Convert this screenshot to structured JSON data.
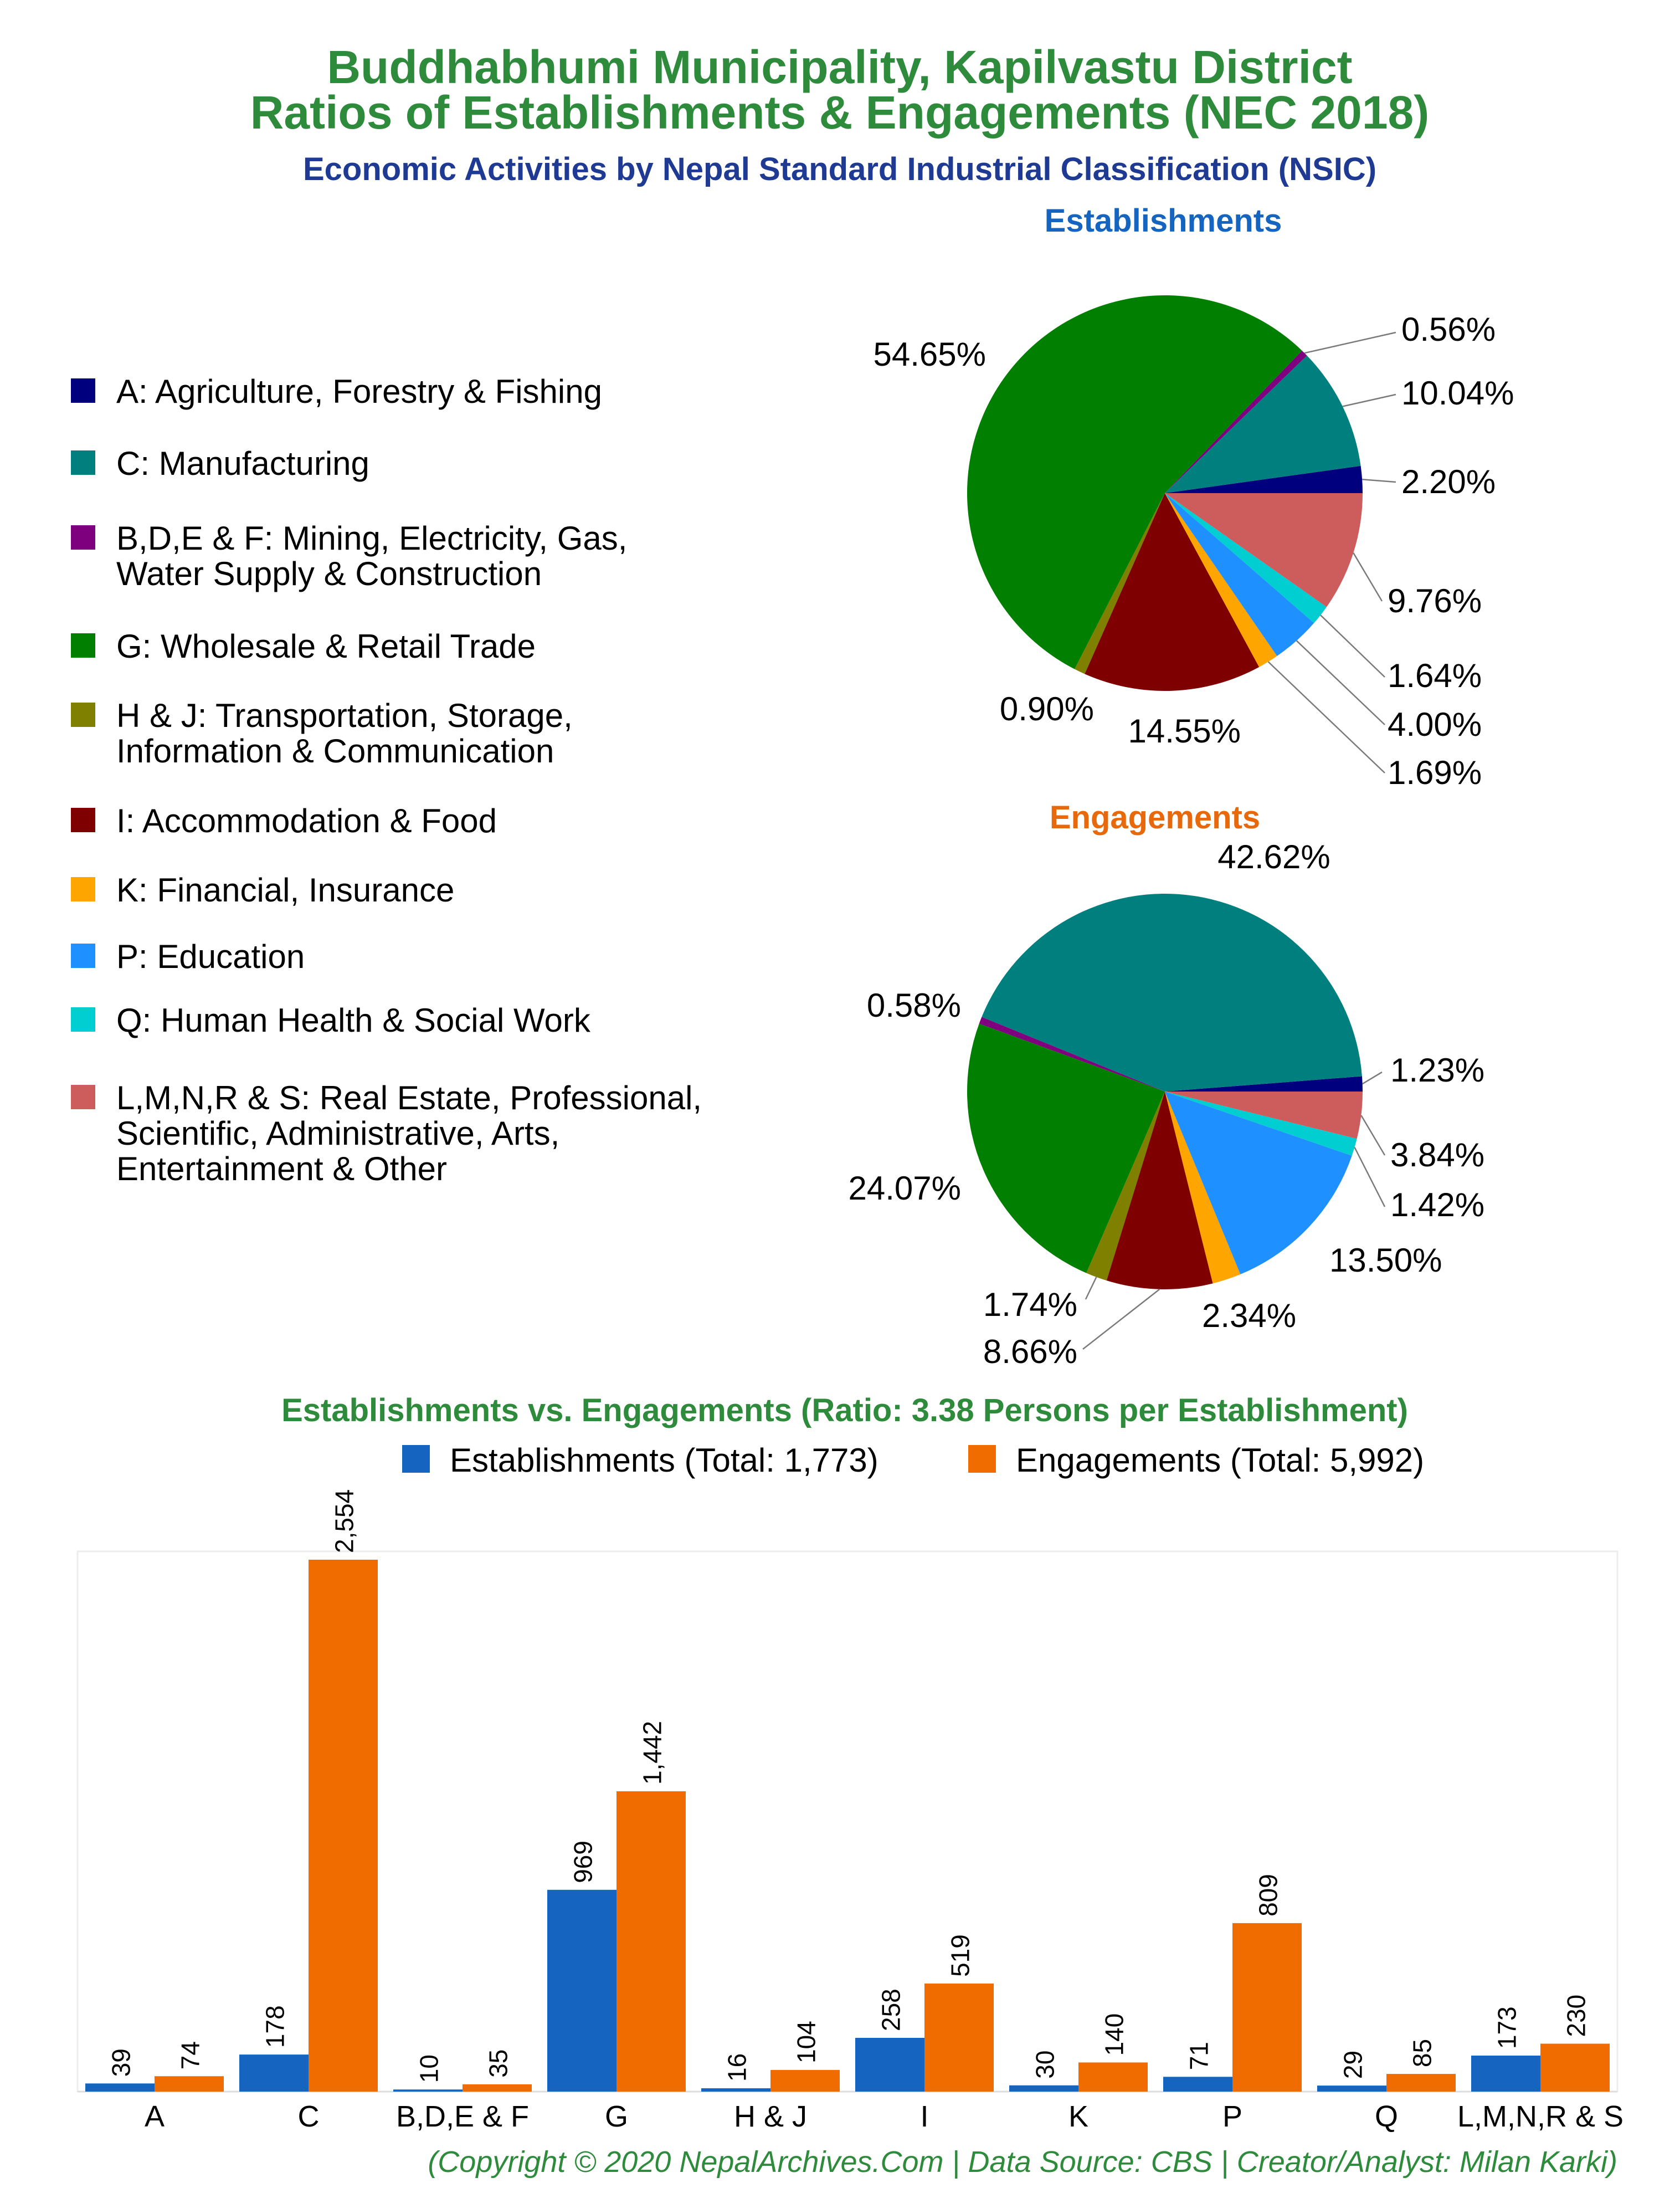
{
  "header": {
    "title_line1": "Buddhabhumi Municipality, Kapilvastu District",
    "title_line2": "Ratios of Establishments & Engagements (NEC 2018)",
    "subtitle": "Economic Activities by Nepal Standard Industrial Classification (NSIC)"
  },
  "colors": {
    "title": "#2e8b3c",
    "subtitle": "#1f3a93",
    "establishments_heading": "#1565c0",
    "engagements_heading": "#e8690b",
    "bar_establishments": "#1565c0",
    "bar_engagements": "#f06c00"
  },
  "legend": {
    "items": [
      {
        "lines": [
          "A: Agriculture, Forestry & Fishing"
        ],
        "color": "#00007f"
      },
      {
        "lines": [
          "C: Manufacturing"
        ],
        "color": "#007f7f"
      },
      {
        "lines": [
          "B,D,E & F: Mining, Electricity, Gas,",
          "Water Supply & Construction"
        ],
        "color": "#7f007f"
      },
      {
        "lines": [
          "G: Wholesale & Retail Trade"
        ],
        "color": "#007f00"
      },
      {
        "lines": [
          "H & J: Transportation, Storage,",
          "Information & Communication"
        ],
        "color": "#7f7f00"
      },
      {
        "lines": [
          "I: Accommodation & Food"
        ],
        "color": "#7f0000"
      },
      {
        "lines": [
          "K: Financial, Insurance"
        ],
        "color": "#ffa500"
      },
      {
        "lines": [
          "P: Education"
        ],
        "color": "#1e90ff"
      },
      {
        "lines": [
          "Q: Human Health & Social Work"
        ],
        "color": "#00ced1"
      },
      {
        "lines": [
          "L,M,N,R & S: Real Estate, Professional,",
          "Scientific, Administrative, Arts,",
          "Entertainment & Other"
        ],
        "color": "#cd5c5c"
      }
    ]
  },
  "chart_data": [
    {
      "type": "pie",
      "title": "Establishments",
      "slices": [
        {
          "category": "A",
          "value": 2.2,
          "label": "2.20%",
          "color": "#00007f"
        },
        {
          "category": "C",
          "value": 10.04,
          "label": "10.04%",
          "color": "#007f7f"
        },
        {
          "category": "B,D,E & F",
          "value": 0.56,
          "label": "0.56%",
          "color": "#7f007f"
        },
        {
          "category": "G",
          "value": 54.65,
          "label": "54.65%",
          "color": "#007f00"
        },
        {
          "category": "H & J",
          "value": 0.9,
          "label": "0.90%",
          "color": "#7f7f00"
        },
        {
          "category": "I",
          "value": 14.55,
          "label": "14.55%",
          "color": "#7f0000"
        },
        {
          "category": "K",
          "value": 1.69,
          "label": "1.69%",
          "color": "#ffa500"
        },
        {
          "category": "P",
          "value": 4.0,
          "label": "4.00%",
          "color": "#1e90ff"
        },
        {
          "category": "Q",
          "value": 1.64,
          "label": "1.64%",
          "color": "#00ced1"
        },
        {
          "category": "L,M,N,R & S",
          "value": 9.76,
          "label": "9.76%",
          "color": "#cd5c5c"
        }
      ]
    },
    {
      "type": "pie",
      "title": "Engagements",
      "slices": [
        {
          "category": "A",
          "value": 1.23,
          "label": "1.23%",
          "color": "#00007f"
        },
        {
          "category": "C",
          "value": 42.62,
          "label": "42.62%",
          "color": "#007f7f"
        },
        {
          "category": "B,D,E & F",
          "value": 0.58,
          "label": "0.58%",
          "color": "#7f007f"
        },
        {
          "category": "G",
          "value": 24.07,
          "label": "24.07%",
          "color": "#007f00"
        },
        {
          "category": "H & J",
          "value": 1.74,
          "label": "1.74%",
          "color": "#7f7f00"
        },
        {
          "category": "I",
          "value": 8.66,
          "label": "8.66%",
          "color": "#7f0000"
        },
        {
          "category": "K",
          "value": 2.34,
          "label": "2.34%",
          "color": "#ffa500"
        },
        {
          "category": "P",
          "value": 13.5,
          "label": "13.50%",
          "color": "#1e90ff"
        },
        {
          "category": "Q",
          "value": 1.42,
          "label": "1.42%",
          "color": "#00ced1"
        },
        {
          "category": "L,M,N,R & S",
          "value": 3.84,
          "label": "3.84%",
          "color": "#cd5c5c"
        }
      ]
    },
    {
      "type": "bar",
      "title": "Establishments vs. Engagements (Ratio: 3.38 Persons per Establishment)",
      "categories": [
        "A",
        "C",
        "B,D,E & F",
        "G",
        "H & J",
        "I",
        "K",
        "P",
        "Q",
        "L,M,N,R & S"
      ],
      "series": [
        {
          "name": "Establishments (Total: 1,773)",
          "values": [
            39,
            178,
            10,
            969,
            16,
            258,
            30,
            71,
            29,
            173
          ],
          "labels": [
            "39",
            "178",
            "10",
            "969",
            "16",
            "258",
            "30",
            "71",
            "29",
            "173"
          ]
        },
        {
          "name": "Engagements (Total: 5,992)",
          "values": [
            74,
            2554,
            35,
            1442,
            104,
            519,
            140,
            809,
            85,
            230
          ],
          "labels": [
            "74",
            "2,554",
            "35",
            "1,442",
            "104",
            "519",
            "140",
            "809",
            "85",
            "230"
          ]
        }
      ],
      "ylim": [
        0,
        2554
      ],
      "grid": false,
      "legend_position": "top"
    }
  ],
  "footer": {
    "copyright": "(Copyright © 2020 NepalArchives.Com | Data Source: CBS | Creator/Analyst: Milan Karki)"
  }
}
